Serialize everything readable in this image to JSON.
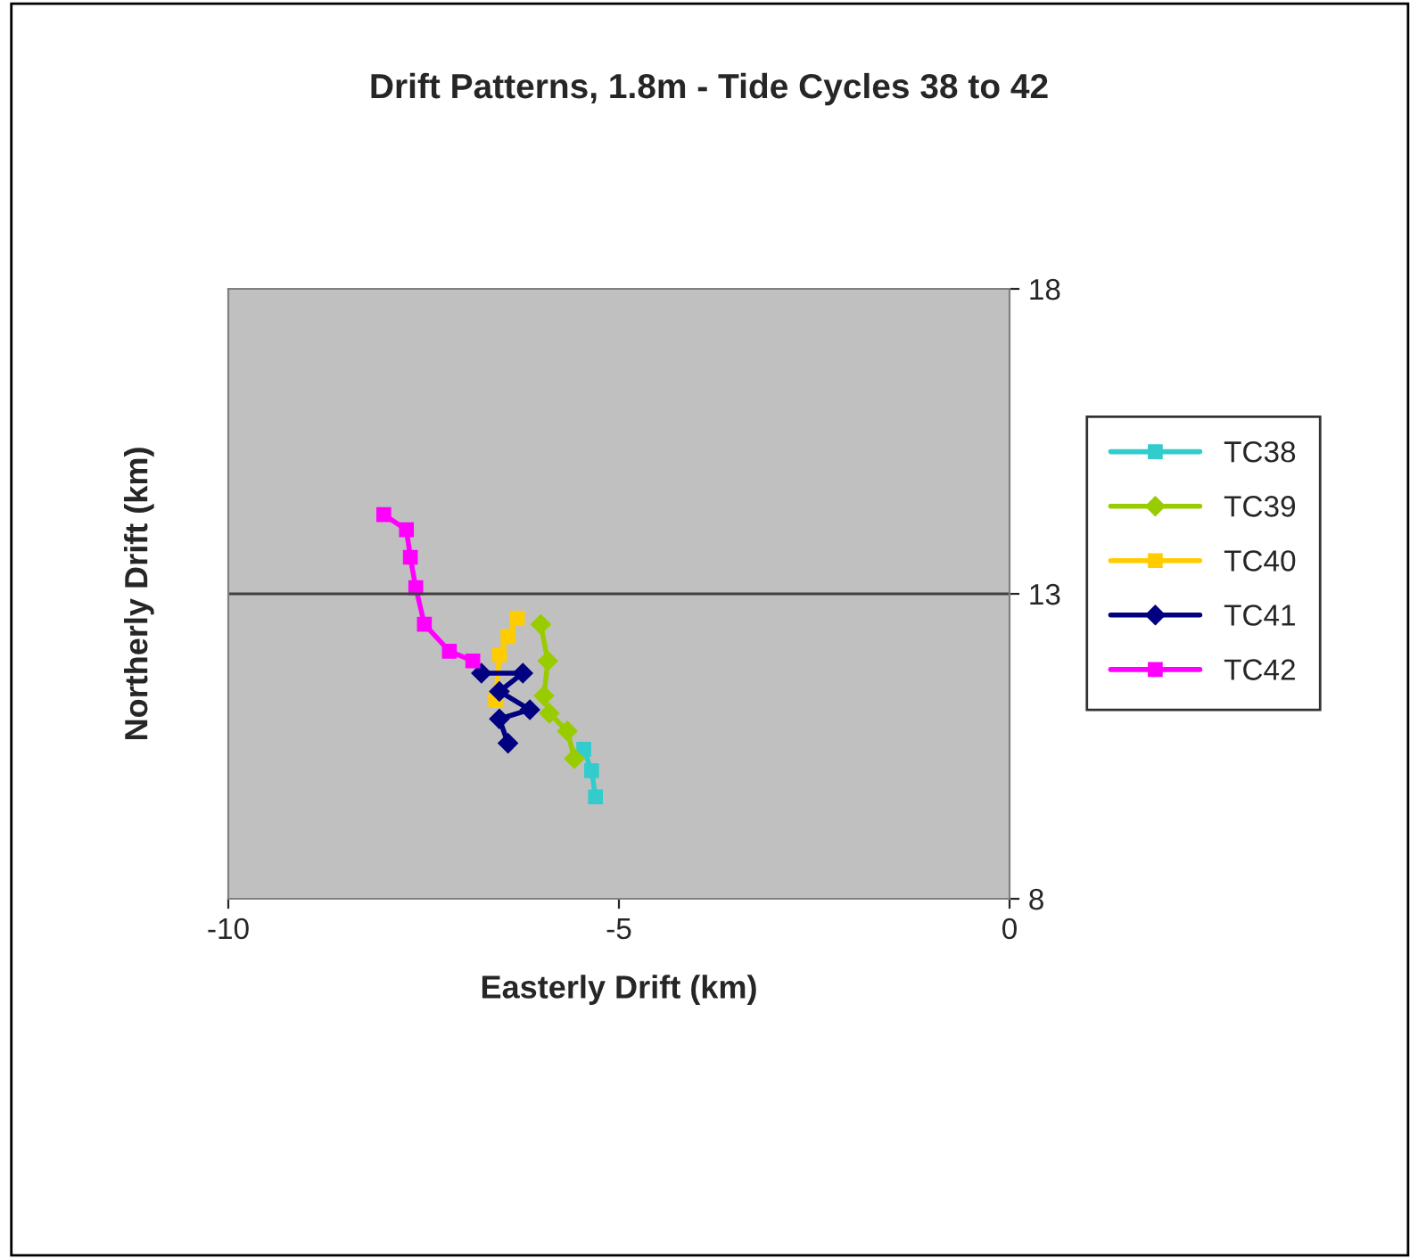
{
  "chart_data": {
    "type": "line",
    "title": "Drift Patterns, 1.8m - Tide Cycles 38 to 42",
    "xlabel": "Easterly Drift (km)",
    "ylabel": "Northerly Drift (km)",
    "xlim": [
      -10,
      0
    ],
    "xticks": [
      -10,
      -5,
      0
    ],
    "ylim": [
      8,
      18
    ],
    "yticks": [
      8,
      13,
      18
    ],
    "grid": false,
    "legend": "right",
    "ref_lines": [
      {
        "axis": "y",
        "value": 13,
        "label": null,
        "color": "#404040"
      }
    ],
    "series": [
      {
        "name": "TC38",
        "color": "#33cccc",
        "marker": "square",
        "x": [
          -5.45,
          -5.35,
          -5.3
        ],
        "values": [
          10.45,
          10.1,
          9.67
        ]
      },
      {
        "name": "TC39",
        "color": "#99cc00",
        "marker": "diamond",
        "x": [
          -6.0,
          -5.91,
          -5.96,
          -5.89,
          -5.66,
          -5.57
        ],
        "values": [
          12.5,
          11.9,
          11.33,
          11.04,
          10.75,
          10.3
        ]
      },
      {
        "name": "TC40",
        "color": "#ffcc00",
        "marker": "square",
        "x": [
          -6.3,
          -6.42,
          -6.53,
          -6.58
        ],
        "values": [
          12.6,
          12.3,
          12.0,
          11.25
        ]
      },
      {
        "name": "TC41",
        "color": "#000080",
        "marker": "diamond",
        "x": [
          -6.76,
          -6.23,
          -6.53,
          -6.14,
          -6.53,
          -6.42
        ],
        "values": [
          11.7,
          11.7,
          11.4,
          11.1,
          10.95,
          10.55
        ]
      },
      {
        "name": "TC42",
        "color": "#ff00ff",
        "marker": "square",
        "x": [
          -8.01,
          -7.72,
          -7.67,
          -7.6,
          -7.49,
          -7.17,
          -6.87
        ],
        "values": [
          14.3,
          14.05,
          13.6,
          13.1,
          12.5,
          12.06,
          11.9
        ]
      }
    ]
  }
}
